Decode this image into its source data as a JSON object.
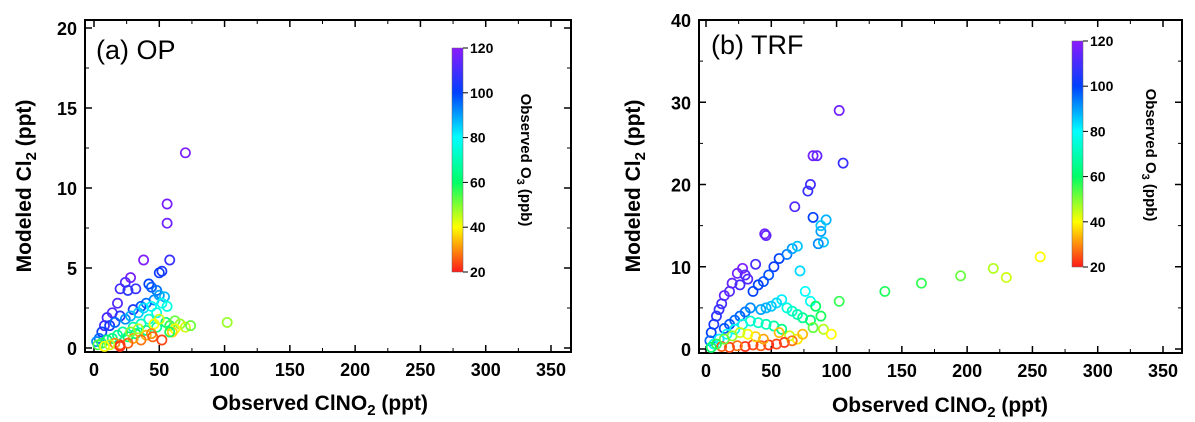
{
  "colorbar": {
    "title_main": "Observed O",
    "title_sub": "3",
    "title_tail": " (ppb)",
    "range": [
      20,
      120
    ],
    "ticks": [
      "20",
      "40",
      "60",
      "80",
      "100",
      "120"
    ],
    "colors": [
      "#ff1a1a",
      "#ffff00",
      "#00ff66",
      "#00ffff",
      "#0040ff",
      "#8c1aff"
    ]
  },
  "axes": {
    "xlabel_main": "Observed ClNO",
    "xlabel_sub": "2",
    "xlabel_tail": " (ppt)",
    "ylabel_main": "Modeled Cl",
    "ylabel_sub": "2",
    "ylabel_tail": " (ppt)"
  },
  "chart_data": [
    {
      "type": "scatter",
      "panel_label": "(a) OP",
      "xlim": [
        0,
        350
      ],
      "ylim": [
        0,
        20
      ],
      "xticks": [
        "0",
        "50",
        "100",
        "150",
        "200",
        "250",
        "300",
        "350"
      ],
      "yticks": [
        "0",
        "5",
        "10",
        "15",
        "20"
      ],
      "points": [
        [
          70,
          12.2,
          118
        ],
        [
          56,
          9.0,
          117
        ],
        [
          56,
          7.8,
          116
        ],
        [
          58,
          5.5,
          108
        ],
        [
          52,
          4.8,
          104
        ],
        [
          50,
          4.7,
          102
        ],
        [
          38,
          5.5,
          118
        ],
        [
          28,
          4.4,
          117
        ],
        [
          24,
          4.1,
          112
        ],
        [
          20,
          3.7,
          110
        ],
        [
          26,
          3.6,
          106
        ],
        [
          32,
          3.7,
          108
        ],
        [
          42,
          4.0,
          100
        ],
        [
          44,
          3.8,
          97
        ],
        [
          48,
          3.6,
          95
        ],
        [
          50,
          3.3,
          90
        ],
        [
          54,
          3.2,
          88
        ],
        [
          46,
          3.0,
          92
        ],
        [
          40,
          2.8,
          95
        ],
        [
          36,
          2.6,
          98
        ],
        [
          30,
          2.4,
          104
        ],
        [
          18,
          2.8,
          112
        ],
        [
          14,
          2.2,
          112
        ],
        [
          20,
          2.0,
          106
        ],
        [
          10,
          1.9,
          110
        ],
        [
          8,
          1.4,
          110
        ],
        [
          12,
          1.4,
          104
        ],
        [
          6,
          1.0,
          102
        ],
        [
          4,
          0.6,
          96
        ],
        [
          2,
          0.4,
          92
        ],
        [
          16,
          1.6,
          96
        ],
        [
          24,
          1.8,
          92
        ],
        [
          28,
          2.0,
          88
        ],
        [
          34,
          2.2,
          86
        ],
        [
          38,
          2.5,
          84
        ],
        [
          44,
          2.6,
          80
        ],
        [
          52,
          2.8,
          78
        ],
        [
          56,
          2.6,
          76
        ],
        [
          48,
          2.2,
          76
        ],
        [
          42,
          1.8,
          74
        ],
        [
          36,
          1.5,
          72
        ],
        [
          30,
          1.3,
          70
        ],
        [
          22,
          1.0,
          68
        ],
        [
          18,
          0.8,
          66
        ],
        [
          14,
          0.6,
          64
        ],
        [
          10,
          0.5,
          62
        ],
        [
          6,
          0.3,
          58
        ],
        [
          3,
          0.2,
          54
        ],
        [
          26,
          0.7,
          60
        ],
        [
          32,
          0.9,
          62
        ],
        [
          40,
          1.1,
          64
        ],
        [
          48,
          1.3,
          66
        ],
        [
          55,
          1.6,
          62
        ],
        [
          58,
          1.4,
          56
        ],
        [
          62,
          1.7,
          52
        ],
        [
          66,
          1.5,
          48
        ],
        [
          70,
          1.3,
          44
        ],
        [
          74,
          1.4,
          52
        ],
        [
          102,
          1.6,
          48
        ],
        [
          62,
          1.2,
          40
        ],
        [
          60,
          1.0,
          36
        ],
        [
          50,
          1.8,
          44
        ],
        [
          46,
          1.5,
          40
        ],
        [
          40,
          0.8,
          34
        ],
        [
          44,
          0.9,
          30
        ],
        [
          36,
          0.5,
          28
        ],
        [
          30,
          0.6,
          32
        ],
        [
          26,
          0.3,
          26
        ],
        [
          20,
          0.2,
          24
        ],
        [
          16,
          0.3,
          30
        ],
        [
          34,
          1.2,
          46
        ],
        [
          28,
          1.0,
          50
        ],
        [
          8,
          0.1,
          40
        ],
        [
          12,
          0.2,
          44
        ],
        [
          45,
          0.7,
          26
        ],
        [
          52,
          0.5,
          24
        ],
        [
          20,
          0.1,
          22
        ],
        [
          58,
          1.0,
          58
        ]
      ]
    },
    {
      "type": "scatter",
      "panel_label": "(b) TRF",
      "xlim": [
        0,
        350
      ],
      "ylim": [
        0,
        40
      ],
      "xticks": [
        "0",
        "50",
        "100",
        "150",
        "200",
        "250",
        "300",
        "350"
      ],
      "yticks": [
        "0",
        "10",
        "20",
        "30",
        "40"
      ],
      "points": [
        [
          102,
          29.0,
          116
        ],
        [
          105,
          22.6,
          108
        ],
        [
          82,
          23.5,
          116
        ],
        [
          85,
          23.5,
          114
        ],
        [
          80,
          20.0,
          110
        ],
        [
          78,
          19.2,
          108
        ],
        [
          68,
          17.3,
          112
        ],
        [
          82,
          16.0,
          100
        ],
        [
          88,
          14.3,
          90
        ],
        [
          92,
          15.7,
          88
        ],
        [
          88,
          15.0,
          86
        ],
        [
          90,
          13.0,
          86
        ],
        [
          86,
          12.8,
          92
        ],
        [
          28,
          9.8,
          118
        ],
        [
          24,
          9.2,
          116
        ],
        [
          20,
          8.0,
          114
        ],
        [
          30,
          9.0,
          112
        ],
        [
          32,
          8.5,
          112
        ],
        [
          26,
          7.8,
          110
        ],
        [
          18,
          7.0,
          112
        ],
        [
          14,
          6.5,
          114
        ],
        [
          12,
          5.5,
          110
        ],
        [
          10,
          4.8,
          108
        ],
        [
          8,
          4.0,
          106
        ],
        [
          6,
          3.0,
          104
        ],
        [
          4,
          2.0,
          100
        ],
        [
          3,
          1.0,
          96
        ],
        [
          45,
          14.0,
          116
        ],
        [
          46,
          13.8,
          114
        ],
        [
          38,
          10.3,
          110
        ],
        [
          52,
          10.0,
          102
        ],
        [
          56,
          11.0,
          100
        ],
        [
          62,
          11.5,
          94
        ],
        [
          66,
          12.2,
          90
        ],
        [
          70,
          12.5,
          86
        ],
        [
          48,
          9.0,
          98
        ],
        [
          44,
          8.2,
          98
        ],
        [
          40,
          7.8,
          100
        ],
        [
          36,
          7.0,
          100
        ],
        [
          72,
          9.5,
          84
        ],
        [
          76,
          7.0,
          80
        ],
        [
          80,
          5.8,
          78
        ],
        [
          58,
          6.0,
          82
        ],
        [
          54,
          5.6,
          84
        ],
        [
          50,
          5.2,
          86
        ],
        [
          46,
          5.0,
          88
        ],
        [
          42,
          4.8,
          90
        ],
        [
          34,
          5.0,
          92
        ],
        [
          30,
          4.5,
          94
        ],
        [
          26,
          4.0,
          96
        ],
        [
          22,
          3.5,
          96
        ],
        [
          18,
          3.0,
          98
        ],
        [
          14,
          2.5,
          98
        ],
        [
          62,
          5.0,
          76
        ],
        [
          66,
          4.6,
          72
        ],
        [
          70,
          4.2,
          70
        ],
        [
          74,
          3.8,
          66
        ],
        [
          80,
          3.5,
          62
        ],
        [
          84,
          5.2,
          60
        ],
        [
          88,
          4.0,
          58
        ],
        [
          102,
          5.8,
          56
        ],
        [
          82,
          2.6,
          52
        ],
        [
          90,
          2.4,
          46
        ],
        [
          96,
          1.8,
          40
        ],
        [
          70,
          1.2,
          38
        ],
        [
          64,
          1.6,
          44
        ],
        [
          58,
          2.4,
          64
        ],
        [
          52,
          2.8,
          68
        ],
        [
          46,
          3.0,
          70
        ],
        [
          40,
          3.2,
          72
        ],
        [
          34,
          3.4,
          74
        ],
        [
          28,
          3.0,
          76
        ],
        [
          22,
          2.4,
          78
        ],
        [
          16,
          1.8,
          80
        ],
        [
          10,
          1.2,
          82
        ],
        [
          6,
          0.6,
          80
        ],
        [
          137,
          7.0,
          58
        ],
        [
          165,
          8.0,
          56
        ],
        [
          195,
          8.9,
          52
        ],
        [
          220,
          9.8,
          46
        ],
        [
          230,
          8.7,
          44
        ],
        [
          256,
          11.2,
          40
        ],
        [
          60,
          0.8,
          22
        ],
        [
          54,
          0.6,
          24
        ],
        [
          48,
          0.5,
          22
        ],
        [
          42,
          0.4,
          26
        ],
        [
          36,
          0.5,
          24
        ],
        [
          30,
          0.3,
          22
        ],
        [
          24,
          0.4,
          28
        ],
        [
          18,
          0.2,
          24
        ],
        [
          12,
          0.3,
          26
        ],
        [
          66,
          1.0,
          28
        ],
        [
          44,
          1.2,
          32
        ],
        [
          38,
          1.5,
          36
        ],
        [
          32,
          1.8,
          40
        ],
        [
          26,
          2.0,
          44
        ],
        [
          20,
          1.6,
          48
        ],
        [
          14,
          1.2,
          52
        ],
        [
          8,
          0.6,
          56
        ],
        [
          74,
          1.8,
          34
        ],
        [
          56,
          2.0,
          34
        ],
        [
          4,
          0.2,
          60
        ]
      ]
    }
  ]
}
